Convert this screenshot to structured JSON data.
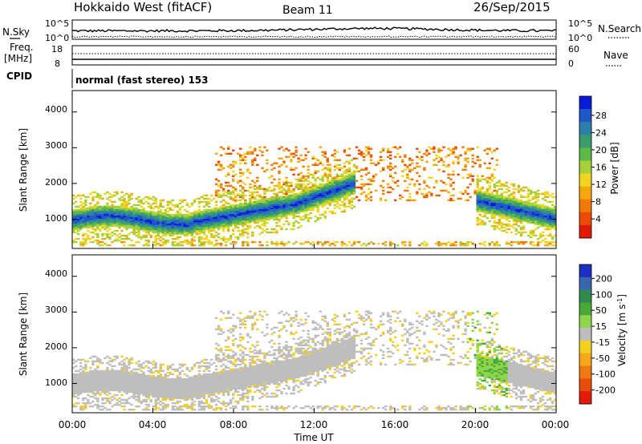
{
  "header": {
    "radar": "Hokkaido West (fitACF)",
    "beam": "Beam 11",
    "date": "26/Sep/2015"
  },
  "noise_panel": {
    "left_label": "N.Sky",
    "right_label": "N.Search",
    "left_ticks": [
      "10^5",
      "10^0"
    ],
    "right_ticks": [
      "10^5",
      "10^0"
    ]
  },
  "freq_panel": {
    "left_label_top": "Freq.",
    "left_label_bottom": "[MHz]",
    "right_label": "Nave",
    "left_ticks": [
      "18",
      "8"
    ],
    "right_ticks": [
      "60",
      "0"
    ]
  },
  "cpid": {
    "label": "CPID",
    "text": "normal (fast stereo) 153"
  },
  "chart_data": [
    {
      "type": "heatmap",
      "title": "",
      "xlabel": "",
      "ylabel": "Slant Range [km]",
      "x_ticks": [],
      "y_ticks": [
        "1000",
        "2000",
        "3000",
        "4000"
      ],
      "xlim": [
        0,
        24
      ],
      "ylim": [
        180,
        4600
      ],
      "colorbar": {
        "label": "Power [dB]",
        "ticks": [
          "4",
          "8",
          "12",
          "16",
          "20",
          "24",
          "28"
        ],
        "range": [
          0,
          30
        ],
        "colors": [
          "#0a1bd8",
          "#1f58c8",
          "#2c7fa8",
          "#3a9b6e",
          "#5db84a",
          "#a4d03a",
          "#f1d521",
          "#f5a70f",
          "#f07a0a",
          "#eb4a07",
          "#e01a05"
        ]
      }
    },
    {
      "type": "heatmap",
      "title": "",
      "xlabel": "Time UT",
      "ylabel": "Slant Range [km]",
      "x_ticks": [
        "00:00",
        "04:00",
        "08:00",
        "12:00",
        "16:00",
        "20:00",
        "00:00"
      ],
      "y_ticks": [
        "1000",
        "2000",
        "3000",
        "4000"
      ],
      "xlim": [
        0,
        24
      ],
      "ylim": [
        180,
        4600
      ],
      "colorbar": {
        "label": "Velocity [m s^-1]",
        "ticks": [
          "200",
          "100",
          "50",
          "15",
          "-15",
          "-50",
          "-100",
          "-200"
        ],
        "range": [
          -250,
          250
        ],
        "colors": [
          "#1c2fc0",
          "#3867b2",
          "#2f8a4e",
          "#4aa838",
          "#8fd54c",
          "#bebebe",
          "#f4d020",
          "#f4a71a",
          "#f07a12",
          "#ea4c0c",
          "#e21a0a"
        ]
      }
    }
  ]
}
